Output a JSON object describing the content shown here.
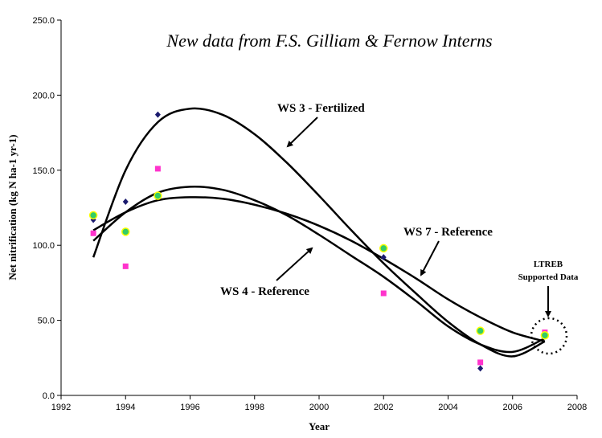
{
  "chart_data": {
    "type": "scatter",
    "title": "New data from F.S. Gilliam & Fernow Interns",
    "xlabel": "Year",
    "ylabel": "Net nitrification  (kg N ha-1 yr-1)",
    "xlim": [
      1992,
      2008
    ],
    "ylim": [
      0,
      250
    ],
    "x_ticks": [
      "1992",
      "1994",
      "1996",
      "1998",
      "2000",
      "2002",
      "2004",
      "2006",
      "2008"
    ],
    "y_ticks": [
      "0.0",
      "50.0",
      "100.0",
      "150.0",
      "200.0",
      "250.0"
    ],
    "grid": false,
    "legend": "none",
    "series": [
      {
        "name": "WS 3 - Fertilized",
        "marker": "diamond",
        "color": "#1a1a6e",
        "points": [
          [
            1993,
            117
          ],
          [
            1994,
            129
          ],
          [
            1995,
            187
          ],
          [
            2002,
            92
          ],
          [
            2005,
            18
          ],
          [
            2007,
            40
          ]
        ],
        "curve": [
          [
            1993,
            92
          ],
          [
            1994,
            150
          ],
          [
            1995,
            182
          ],
          [
            1996,
            191
          ],
          [
            1997,
            187
          ],
          [
            1998,
            174
          ],
          [
            1999,
            155
          ],
          [
            2000,
            133
          ],
          [
            2001,
            110
          ],
          [
            2002,
            88
          ],
          [
            2003,
            68
          ],
          [
            2004,
            49
          ],
          [
            2005,
            34
          ],
          [
            2006,
            26
          ],
          [
            2007,
            36
          ]
        ]
      },
      {
        "name": "WS 4 - Reference",
        "marker": "square",
        "color": "#ff33cc",
        "points": [
          [
            1993,
            108
          ],
          [
            1994,
            86
          ],
          [
            1995,
            151
          ],
          [
            2002,
            68
          ],
          [
            2005,
            22
          ],
          [
            2007,
            42
          ]
        ],
        "curve": [
          [
            1993,
            103
          ],
          [
            1994,
            122
          ],
          [
            1995,
            135
          ],
          [
            1996,
            139
          ],
          [
            1997,
            137
          ],
          [
            1998,
            130
          ],
          [
            1999,
            120
          ],
          [
            2000,
            107
          ],
          [
            2001,
            93
          ],
          [
            2002,
            79
          ],
          [
            2003,
            63
          ],
          [
            2004,
            46
          ],
          [
            2005,
            34
          ],
          [
            2006,
            29
          ],
          [
            2007,
            38
          ]
        ]
      },
      {
        "name": "WS 7 - Reference",
        "marker": "circle",
        "color": "#33cc66",
        "points": [
          [
            1993,
            120
          ],
          [
            1994,
            109
          ],
          [
            1995,
            133
          ],
          [
            2002,
            98
          ],
          [
            2005,
            43
          ],
          [
            2007,
            40
          ]
        ],
        "curve": [
          [
            1993,
            110
          ],
          [
            1994,
            122
          ],
          [
            1995,
            130
          ],
          [
            1996,
            132
          ],
          [
            1997,
            131
          ],
          [
            1998,
            127
          ],
          [
            1999,
            121
          ],
          [
            2000,
            113
          ],
          [
            2001,
            103
          ],
          [
            2002,
            91
          ],
          [
            2003,
            78
          ],
          [
            2004,
            64
          ],
          [
            2005,
            52
          ],
          [
            2006,
            42
          ],
          [
            2007,
            36
          ]
        ]
      }
    ],
    "annotations": [
      {
        "name": "ws3",
        "text": "WS 3 - Fertilized"
      },
      {
        "name": "ws7",
        "text": "WS 7 - Reference"
      },
      {
        "name": "ws4",
        "text": "WS 4 - Reference"
      },
      {
        "name": "ltreb-1",
        "text": "LTREB"
      },
      {
        "name": "ltreb-2",
        "text": "Supported Data"
      }
    ]
  }
}
